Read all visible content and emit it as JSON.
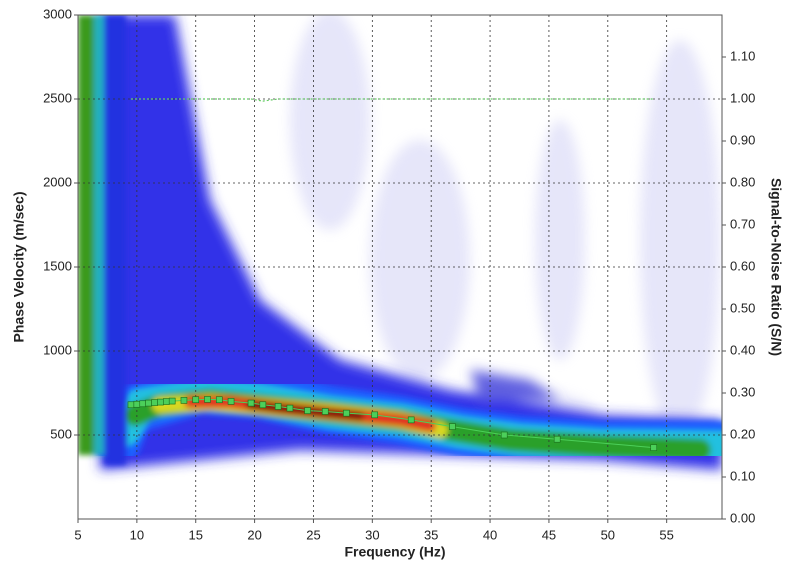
{
  "chart_data": {
    "type": "scatter",
    "x_label": "Frequency (Hz)",
    "y_label": "Phase Velocity (m/sec)",
    "y2_label": "Signal-to-Noise Ratio (S/N)",
    "xlim": [
      5,
      59.7
    ],
    "xticks": [
      5,
      10,
      15,
      20,
      25,
      30,
      35,
      40,
      45,
      50,
      55
    ],
    "ylim": [
      0,
      3000
    ],
    "yticks": [
      500,
      1000,
      1500,
      2000,
      2500,
      3000
    ],
    "y2lim": [
      0,
      1.2
    ],
    "y2ticks": [
      {
        "value": 0,
        "label": "0.00"
      },
      {
        "value": 0.1,
        "label": "0.10"
      },
      {
        "value": 0.2,
        "label": "0.20"
      },
      {
        "value": 0.3,
        "label": "0.30"
      },
      {
        "value": 0.4,
        "label": "0.40"
      },
      {
        "value": 0.5,
        "label": "0.50"
      },
      {
        "value": 0.6,
        "label": "0.60"
      },
      {
        "value": 0.7,
        "label": "0.70"
      },
      {
        "value": 0.8,
        "label": "0.80"
      },
      {
        "value": 0.9,
        "label": "0.90"
      },
      {
        "value": 1,
        "label": "1.00"
      },
      {
        "value": 1.1,
        "label": "1.10"
      }
    ],
    "grid": true,
    "x": [
      9.5,
      10,
      10.5,
      11,
      11.5,
      12,
      12.5,
      13,
      14,
      15,
      16,
      17,
      18,
      19.7,
      20.7,
      22,
      23,
      24.5,
      26,
      27.8,
      30.2,
      33.3,
      36.8,
      41.2,
      45.7,
      53.9
    ],
    "series": [
      {
        "color": "#4ccf5a",
        "values": [
          680,
          683,
          686,
          690,
          693,
          696,
          699,
          702,
          706,
          710,
          712,
          710,
          700,
          690,
          680,
          670,
          660,
          645,
          640,
          630,
          620,
          590,
          550,
          500,
          475,
          425
        ]
      },
      {
        "color": "#66cc66",
        "axis": "y2",
        "values": [
          1,
          1,
          1,
          1,
          1,
          1,
          1,
          1,
          1,
          1,
          1,
          1,
          1,
          1,
          0.995,
          1,
          1,
          1,
          1,
          1,
          1,
          1,
          1,
          1,
          1,
          1
        ]
      }
    ]
  }
}
